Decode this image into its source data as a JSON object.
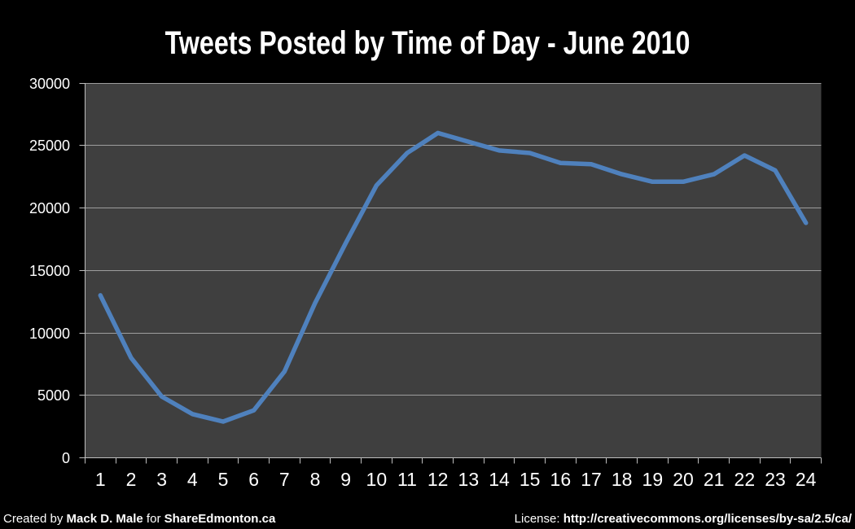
{
  "page": {
    "title": "Tweets Posted by Time of Day - June 2010",
    "footer": {
      "left_prefix": "Created by ",
      "left_author": "Mack D. Male",
      "left_mid": " for ",
      "left_site": "ShareEdmonton.ca",
      "right_label": "License: ",
      "right_url": "http://creativecommons.org/licenses/by-sa/2.5/ca/"
    }
  },
  "chart_data": {
    "type": "line",
    "title": "Tweets Posted by Time of Day - June 2010",
    "categories": [
      1,
      2,
      3,
      4,
      5,
      6,
      7,
      8,
      9,
      10,
      11,
      12,
      13,
      14,
      15,
      16,
      17,
      18,
      19,
      20,
      21,
      22,
      23,
      24
    ],
    "values": [
      13000,
      8000,
      4900,
      3500,
      2900,
      3800,
      6900,
      12400,
      17200,
      21800,
      24400,
      26000,
      25300,
      24600,
      24400,
      23600,
      23500,
      22700,
      22100,
      22100,
      22700,
      24200,
      23000,
      18800
    ],
    "xlabel": "",
    "ylabel": "",
    "ylim": [
      0,
      30000
    ],
    "ytick_step": 5000,
    "grid": true,
    "legend_position": "none",
    "colors": {
      "page_background": "#000000",
      "plot_background": "#3f3f3f",
      "gridline": "#9d9d9d",
      "axis": "#bfbfbf",
      "line": "#4f81bd",
      "text": "#ffffff"
    }
  }
}
